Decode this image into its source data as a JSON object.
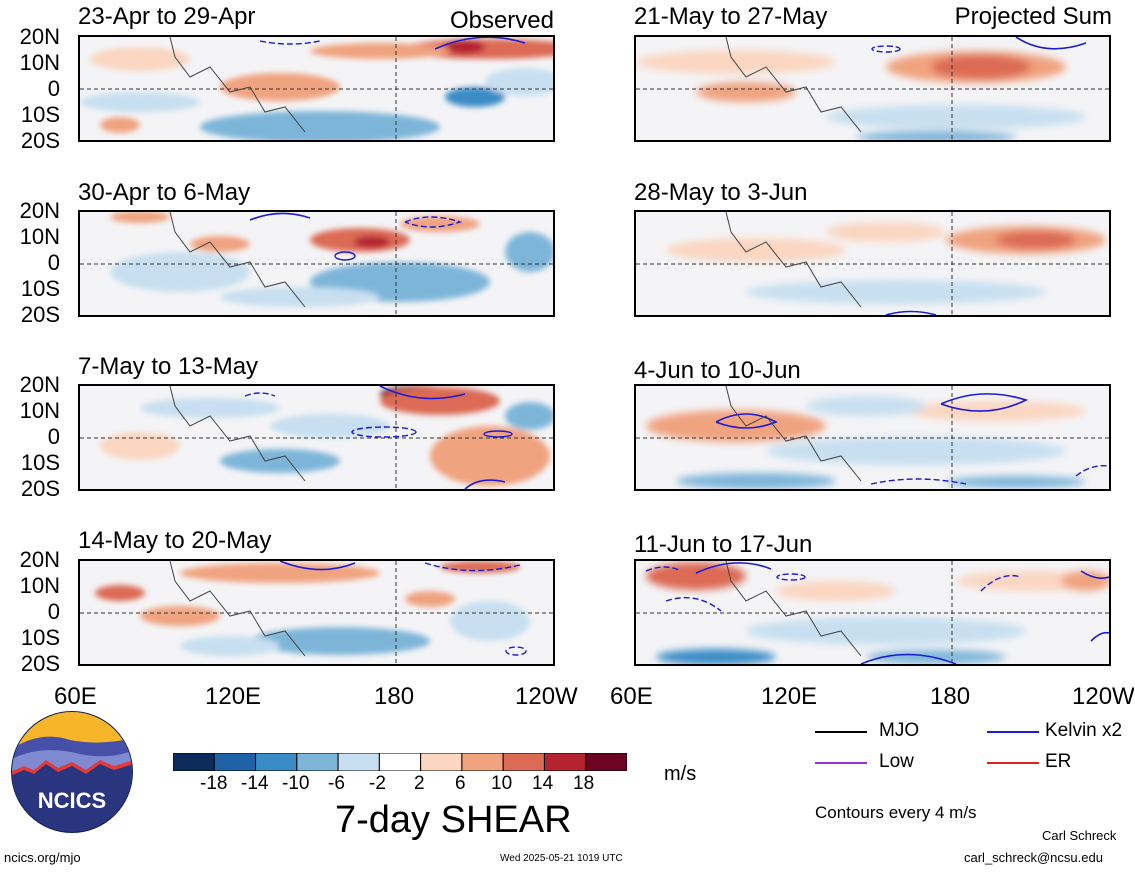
{
  "page": {
    "corner_left": "Observed",
    "corner_right": "Projected Sum",
    "colorbar_title": "7-day SHEAR",
    "colorbar_units": "m/s",
    "colorbar_ticks": [
      "-18",
      "-14",
      "-10",
      "-6",
      "-2",
      "2",
      "6",
      "10",
      "14",
      "18"
    ],
    "colorbar_colors": [
      "#0b2c5a",
      "#1f62a8",
      "#3b8cc6",
      "#7db5d9",
      "#c7dff0",
      "#ffffff",
      "#fbd6c1",
      "#f0a37f",
      "#dc6b55",
      "#b52331",
      "#6c0423"
    ],
    "lat_labels": [
      "20N",
      "10N",
      "0",
      "10S",
      "20S"
    ],
    "lon_labels": [
      "60E",
      "120E",
      "180",
      "120W"
    ],
    "legend": [
      {
        "label": "MJO",
        "color": "#000000"
      },
      {
        "label": "Kelvin x2",
        "color": "#1b1bd6"
      },
      {
        "label": "Low",
        "color": "#9a30d6"
      },
      {
        "label": "ER",
        "color": "#e0201c"
      }
    ],
    "contours_note": "Contours every 4 m/s",
    "author_name": "Carl Schreck",
    "author_email": "carl_schreck@ncsu.edu",
    "site": "ncics.org/mjo",
    "timestamp": "Wed 2025-05-21 1019 UTC",
    "logo_text": "NCICS"
  },
  "panels_left": [
    {
      "title": "23-Apr to 29-Apr"
    },
    {
      "title": "30-Apr to 6-May"
    },
    {
      "title": "7-May to 13-May"
    },
    {
      "title": "14-May to 20-May"
    }
  ],
  "panels_right": [
    {
      "title": "21-May to 27-May"
    },
    {
      "title": "28-May to 3-Jun"
    },
    {
      "title": "4-Jun to 10-Jun"
    },
    {
      "title": "11-Jun to 17-Jun"
    }
  ]
}
